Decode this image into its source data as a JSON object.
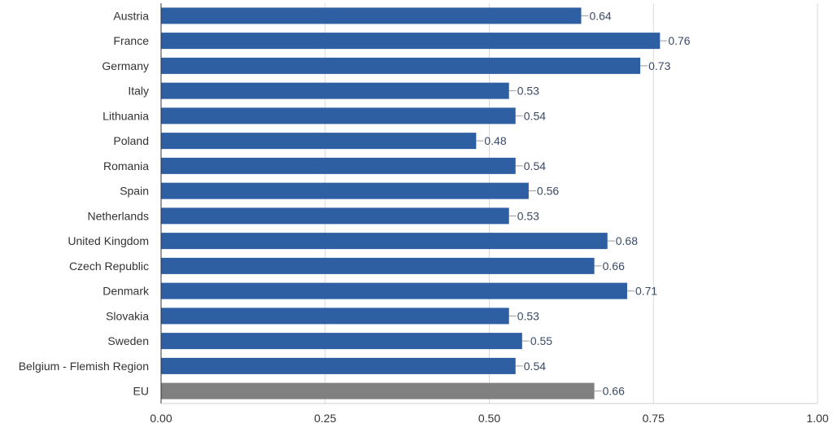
{
  "chart_data": {
    "type": "bar",
    "orientation": "horizontal",
    "title": "",
    "xlabel": "",
    "ylabel": "",
    "xlim": [
      0,
      1
    ],
    "x_ticks": [
      0,
      0.25,
      0.5,
      0.75,
      1
    ],
    "x_tick_labels": [
      "0.00",
      "0.25",
      "0.50",
      "0.75",
      "1.00"
    ],
    "grid": "vertical",
    "categories": [
      "Austria",
      "France",
      "Germany",
      "Italy",
      "Lithuania",
      "Poland",
      "Romania",
      "Spain",
      "Netherlands",
      "United Kingdom",
      "Czech Republic",
      "Denmark",
      "Slovakia",
      "Sweden",
      "Belgium - Flemish Region",
      "EU"
    ],
    "values": [
      0.64,
      0.76,
      0.73,
      0.53,
      0.54,
      0.48,
      0.54,
      0.56,
      0.53,
      0.68,
      0.66,
      0.71,
      0.53,
      0.55,
      0.54,
      0.66
    ],
    "value_labels": [
      "0.64",
      "0.76",
      "0.73",
      "0.53",
      "0.54",
      "0.48",
      "0.54",
      "0.56",
      "0.53",
      "0.68",
      "0.66",
      "0.71",
      "0.53",
      "0.55",
      "0.54",
      "0.66"
    ],
    "colors": {
      "bar": "#2e5fa3",
      "highlight_bar": "#808080",
      "grid": "#d9d9d9",
      "axis": "#333333"
    },
    "highlight_category": "EU"
  }
}
